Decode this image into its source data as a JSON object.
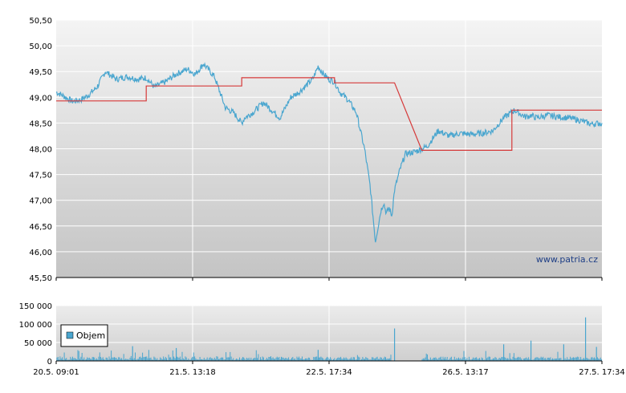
{
  "chart_data": [
    {
      "type": "line",
      "watermark": "www.patria.cz",
      "ylim": [
        45.5,
        50.5
      ],
      "y_ticks": [
        "45,50",
        "46,00",
        "46,50",
        "47,00",
        "47,50",
        "48,00",
        "48,50",
        "49,00",
        "49,50",
        "50,00",
        "50,50"
      ],
      "x_ticks": [
        "20.5. 09:01",
        "21.5. 13:18",
        "22.5. 17:34",
        "26.5. 13:17",
        "27.5. 17:34"
      ],
      "grid": true,
      "series": [
        {
          "color": "#4aa6cf",
          "x": [
            0,
            0.01,
            0.02,
            0.03,
            0.045,
            0.06,
            0.075,
            0.09,
            0.11,
            0.13,
            0.15,
            0.165,
            0.18,
            0.2,
            0.22,
            0.24,
            0.255,
            0.27,
            0.29,
            0.31,
            0.325,
            0.34,
            0.345,
            0.36,
            0.38,
            0.4,
            0.41,
            0.42,
            0.43,
            0.445,
            0.46,
            0.47,
            0.48,
            0.49,
            0.5,
            0.51,
            0.52,
            0.535,
            0.55,
            0.565,
            0.575,
            0.585,
            0.595,
            0.6,
            0.605,
            0.61,
            0.615,
            0.62,
            0.63,
            0.64,
            0.66,
            0.68,
            0.7,
            0.72,
            0.74,
            0.76,
            0.78,
            0.8,
            0.82,
            0.84,
            0.85,
            0.86,
            0.87,
            0.88,
            0.9,
            0.92,
            0.94,
            0.96,
            0.98,
            1.0
          ],
          "values": [
            49.1,
            49.05,
            48.98,
            48.92,
            48.95,
            49.05,
            49.2,
            49.5,
            49.35,
            49.4,
            49.35,
            49.38,
            49.2,
            49.3,
            49.45,
            49.55,
            49.45,
            49.65,
            49.4,
            48.8,
            48.7,
            48.5,
            48.6,
            48.7,
            48.9,
            48.7,
            48.6,
            48.8,
            49.0,
            49.1,
            49.25,
            49.35,
            49.6,
            49.45,
            49.35,
            49.3,
            49.1,
            48.95,
            48.7,
            48.0,
            47.3,
            46.2,
            46.8,
            46.95,
            46.75,
            46.85,
            46.7,
            47.2,
            47.6,
            47.9,
            47.95,
            48.05,
            48.35,
            48.25,
            48.3,
            48.28,
            48.3,
            48.35,
            48.6,
            48.75,
            48.68,
            48.62,
            48.65,
            48.6,
            48.65,
            48.62,
            48.6,
            48.55,
            48.48,
            48.5
          ]
        },
        {
          "color": "#d63a3a",
          "x": [
            0,
            0.165,
            0.165,
            0.34,
            0.34,
            0.51,
            0.51,
            0.62,
            0.67,
            0.835,
            0.835,
            1.0
          ],
          "values": [
            48.93,
            48.93,
            49.22,
            49.22,
            49.38,
            49.38,
            49.28,
            49.28,
            47.97,
            47.97,
            48.75,
            48.75
          ]
        }
      ]
    },
    {
      "type": "bar",
      "legend": "Objem",
      "legend_color": "#4aa6cf",
      "ylim": [
        0,
        150000
      ],
      "y_ticks": [
        "0",
        "50 000",
        "100 000",
        "150 000"
      ],
      "x_ticks": [
        "20.5. 09:01",
        "21.5. 13:18",
        "22.5. 17:34",
        "26.5. 13:17",
        "27.5. 17:34"
      ],
      "typical_volume": 8000,
      "spikes": [
        {
          "x": 0.14,
          "value": 40000
        },
        {
          "x": 0.22,
          "value": 35000
        },
        {
          "x": 0.48,
          "value": 30000
        },
        {
          "x": 0.62,
          "value": 88000
        },
        {
          "x": 0.82,
          "value": 45000
        },
        {
          "x": 0.87,
          "value": 55000
        },
        {
          "x": 0.93,
          "value": 45000
        },
        {
          "x": 0.97,
          "value": 118000
        },
        {
          "x": 0.99,
          "value": 38000
        }
      ]
    }
  ]
}
